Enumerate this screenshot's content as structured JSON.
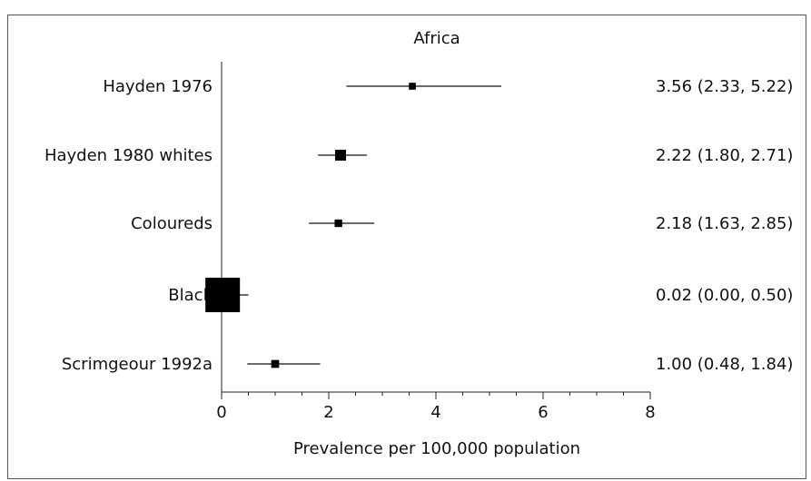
{
  "chart_data": {
    "type": "forest",
    "title": "Africa",
    "xlabel": "Prevalence per 100,000 population",
    "xlim": [
      0,
      8
    ],
    "x_ticks": [
      0,
      2,
      4,
      6,
      8
    ],
    "x_tick_labels": [
      "0",
      "2",
      "4",
      "6",
      "8"
    ],
    "grid": false,
    "studies": [
      {
        "label": "Hayden 1976",
        "estimate": 3.56,
        "lower": 2.33,
        "upper": 5.22,
        "ci_text": "3.56 (2.33, 5.22)",
        "weight": 1
      },
      {
        "label": "Hayden 1980 whites",
        "estimate": 2.22,
        "lower": 1.8,
        "upper": 2.71,
        "ci_text": "2.22 (1.80, 2.71)",
        "weight": 2.5
      },
      {
        "label": "Coloureds",
        "estimate": 2.18,
        "lower": 1.63,
        "upper": 2.85,
        "ci_text": "2.18 (1.63, 2.85)",
        "weight": 1.2
      },
      {
        "label": "Black",
        "estimate": 0.02,
        "lower": 0.0,
        "upper": 0.5,
        "ci_text": "0.02 (0.00, 0.50)",
        "weight": 25
      },
      {
        "label": "Scrimgeour 1992a",
        "estimate": 1.0,
        "lower": 0.48,
        "upper": 1.84,
        "ci_text": "1.00 (0.48, 1.84)",
        "weight": 1.3
      }
    ]
  }
}
